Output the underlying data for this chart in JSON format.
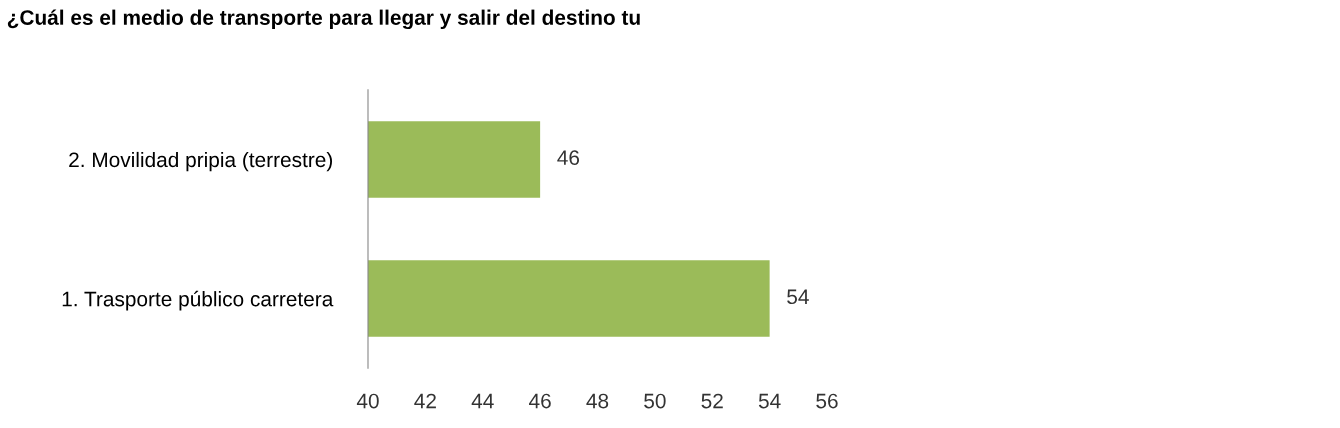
{
  "chart_data": {
    "type": "bar",
    "orientation": "horizontal",
    "title": "¿Cuál es el medio de transporte para llegar y salir del destino tu",
    "categories": [
      "2. Movilidad pripia (terrestre)",
      "1. Trasporte público carretera"
    ],
    "values": [
      46,
      54
    ],
    "color": "#9bbb59",
    "xlim": [
      40,
      56
    ],
    "xticks": [
      40,
      42,
      44,
      46,
      48,
      50,
      52,
      54,
      56
    ],
    "data_labels": true,
    "grid": false
  }
}
